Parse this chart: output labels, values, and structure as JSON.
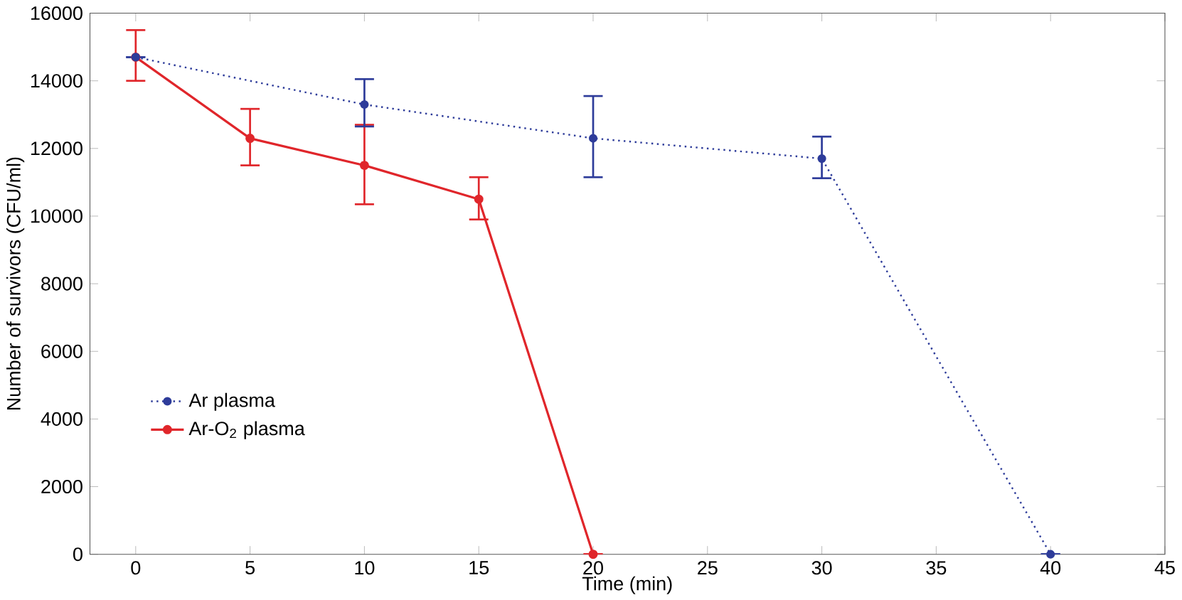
{
  "chart_data": {
    "type": "line",
    "xlabel": "Time (min)",
    "ylabel": "Number of survivors (CFU/ml)",
    "xlim": [
      -2,
      45
    ],
    "ylim": [
      0,
      16000
    ],
    "xticks": [
      0,
      5,
      10,
      15,
      20,
      25,
      30,
      35,
      40,
      45
    ],
    "yticks": [
      0,
      2000,
      4000,
      6000,
      8000,
      10000,
      12000,
      14000,
      16000
    ],
    "grid": false,
    "legend": "bottom left",
    "marker": "circle",
    "series": [
      {
        "name": "Ar plasma",
        "color": "#2e3c9a",
        "line_style": "dotted",
        "x": [
          0,
          10,
          20,
          30,
          40
        ],
        "values": [
          14700,
          13300,
          12300,
          11700,
          0
        ],
        "errors": [
          null,
          [
            12650,
            14050
          ],
          [
            11150,
            13550
          ],
          [
            11120,
            12350
          ],
          null
        ]
      },
      {
        "name": "Ar-O$_{2}$ plasma",
        "color": "#e0262b",
        "line_style": "solid",
        "x": [
          0,
          5,
          10,
          15,
          20
        ],
        "values": [
          14700,
          12300,
          11500,
          10500,
          0
        ],
        "errors": [
          [
            14000,
            15500
          ],
          [
            11500,
            13170
          ],
          [
            10350,
            12700
          ],
          [
            9900,
            11150
          ],
          null
        ]
      }
    ]
  }
}
